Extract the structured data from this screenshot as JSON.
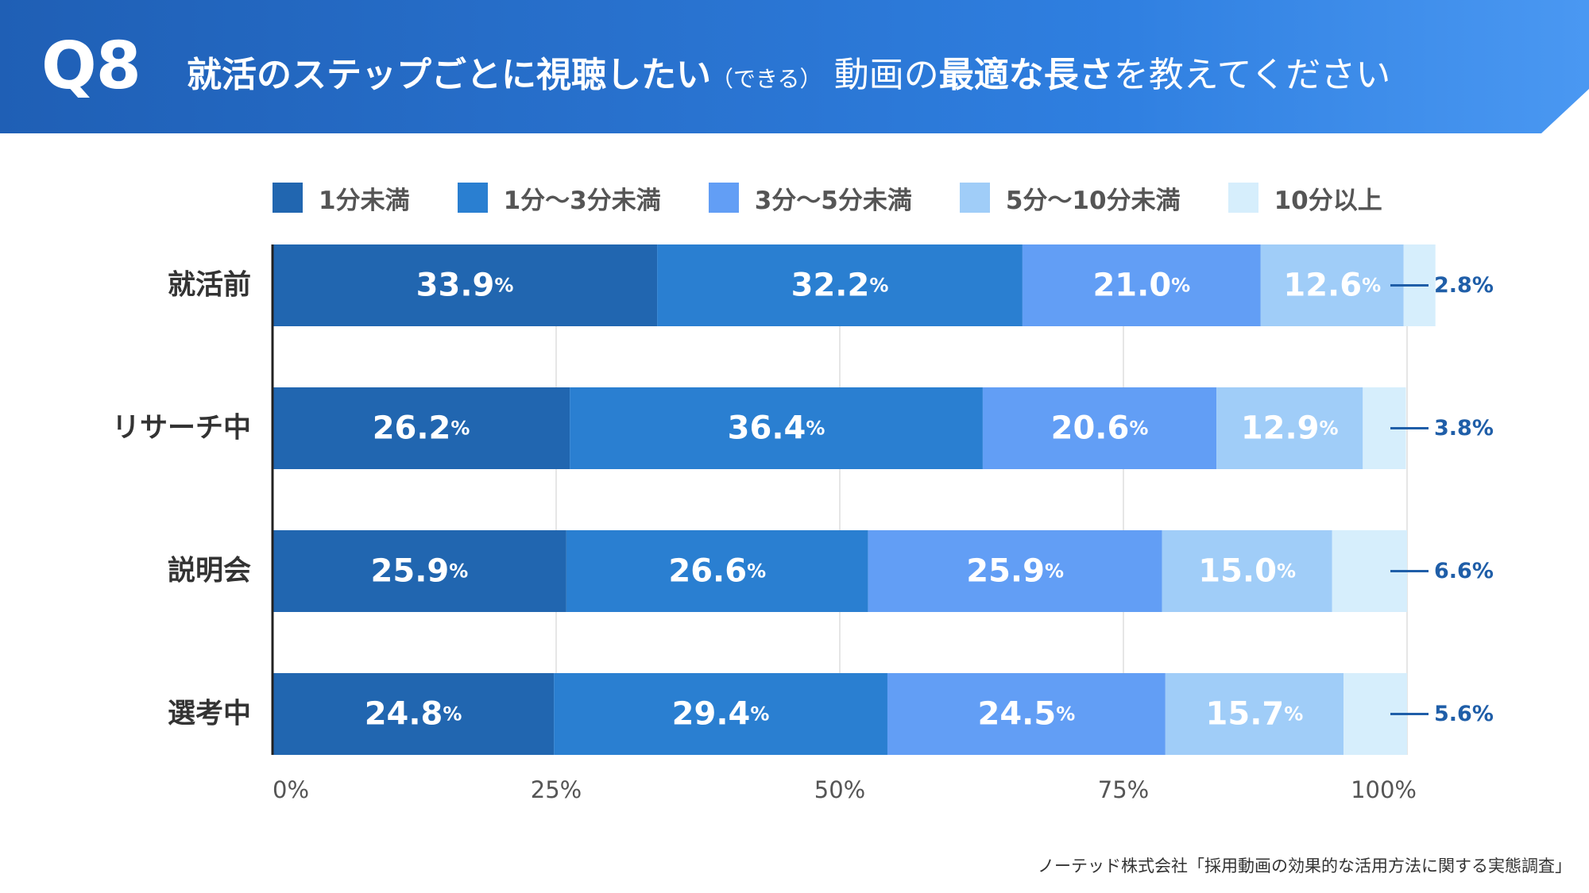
{
  "header": {
    "q_number": "Q8",
    "title_part1": "就活のステップごとに視聴したい",
    "title_note": "（できる）",
    "title_part2": "動画の",
    "title_emph": "最適な長さ",
    "title_part3": "を教えてください"
  },
  "colors": {
    "header_start": "#1f5fb5",
    "header_end": "#4a98f2",
    "series": [
      "#2166b0",
      "#2a7fd1",
      "#629ef5",
      "#a0cdf8",
      "#d6eefc"
    ],
    "callout": "#1f5ea8"
  },
  "source": "ノーテッド株式会社「採用動画の効果的な活用方法に関する実態調査」",
  "chart_data": {
    "type": "bar",
    "orientation": "horizontal",
    "stacked": true,
    "title": "就活のステップごとに視聴したい（できる）動画の最適な長さを教えてください",
    "categories": [
      "就活前",
      "リサーチ中",
      "説明会",
      "選考中"
    ],
    "series": [
      {
        "name": "1分未満",
        "values": [
          33.9,
          26.2,
          25.9,
          24.8
        ]
      },
      {
        "name": "1分〜3分未満",
        "values": [
          32.2,
          36.4,
          26.6,
          29.4
        ]
      },
      {
        "name": "3分〜5分未満",
        "values": [
          21.0,
          20.6,
          25.9,
          24.5
        ]
      },
      {
        "name": "5分〜10分未満",
        "values": [
          12.6,
          12.9,
          15.0,
          15.7
        ]
      },
      {
        "name": "10分以上",
        "values": [
          2.8,
          3.8,
          6.6,
          5.6
        ]
      }
    ],
    "value_unit": "%",
    "xlim": [
      0,
      100
    ],
    "xticks": [
      "0%",
      "25%",
      "50%",
      "75%",
      "100%"
    ],
    "gridlines": true,
    "legend_position": "top",
    "label_format": "inside-segments; last series as outside callout"
  }
}
